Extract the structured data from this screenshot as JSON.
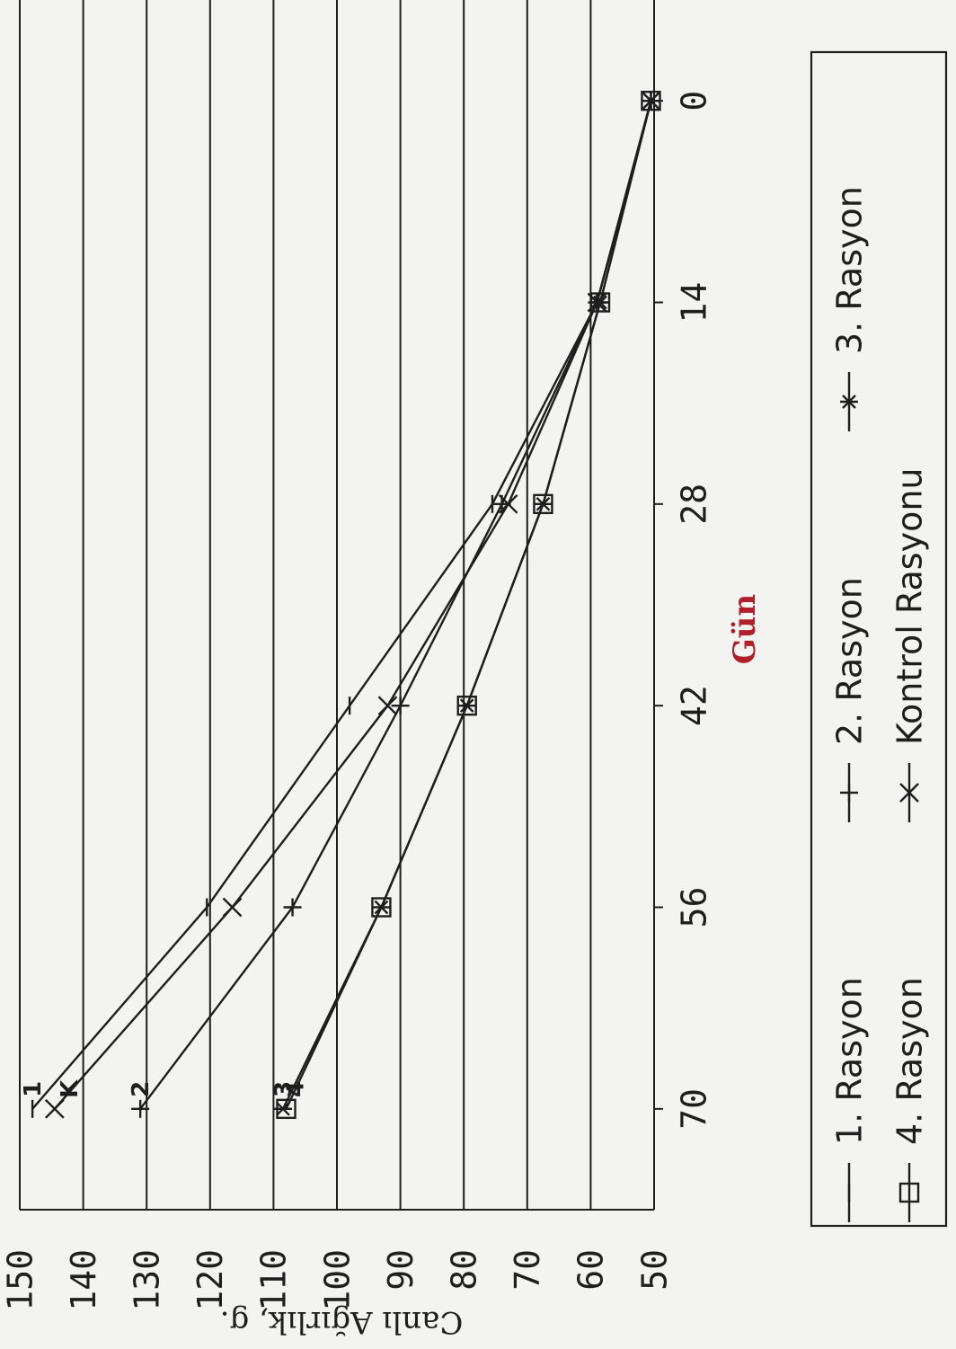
{
  "chart_data": {
    "type": "line",
    "orientation": "rotated-90-clockwise",
    "xlabel": "Gün",
    "ylabel": "Canlı Ağırlık, g.",
    "x": [
      0,
      14,
      28,
      42,
      56,
      70
    ],
    "x_ticks": [
      "0",
      "14",
      "28",
      "42",
      "56",
      "70"
    ],
    "y_ticks": [
      "50",
      "60",
      "70",
      "80",
      "90",
      "100",
      "110",
      "120",
      "130",
      "140",
      "150"
    ],
    "xlim": [
      -7,
      77
    ],
    "ylim": [
      50,
      150
    ],
    "grid": "horizontal",
    "legend_position": "bottom",
    "series": [
      {
        "name": "1. Rasyon",
        "end_label": "1",
        "marker": "dash",
        "values": [
          50.5,
          59,
          75.5,
          98,
          120.5,
          148
        ]
      },
      {
        "name": "2. Rasyon",
        "end_label": "2",
        "marker": "plus",
        "values": [
          50.5,
          59,
          74,
          90,
          107,
          131
        ]
      },
      {
        "name": "3. Rasyon",
        "end_label": "3",
        "marker": "asterisk",
        "values": [
          50.5,
          58.5,
          67.5,
          79.5,
          93,
          108.5
        ]
      },
      {
        "name": "4. Rasyon",
        "end_label": "4",
        "marker": "square",
        "values": [
          50.5,
          58.5,
          67.5,
          79.5,
          93,
          108
        ]
      },
      {
        "name": "Kontrol Rasyonu",
        "end_label": "K",
        "marker": "x",
        "values": [
          50.5,
          59,
          73,
          92,
          116.5,
          144.5
        ]
      }
    ]
  }
}
